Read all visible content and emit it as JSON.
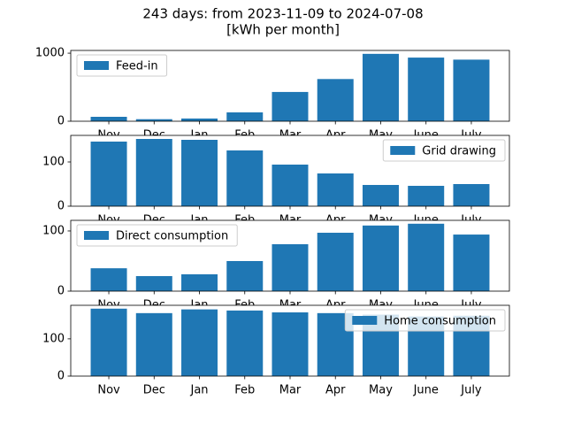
{
  "title": [
    "243 days: from 2023-11-09 to 2024-07-08",
    "[kWh per month]"
  ],
  "chart_data": [
    {
      "type": "bar",
      "categories": [
        "Nov",
        "Dec",
        "Jan",
        "Feb",
        "Mar",
        "Apr",
        "May",
        "June",
        "July"
      ],
      "series": [
        {
          "name": "Feed-in",
          "color": "#1f77b4",
          "values": [
            65,
            30,
            40,
            130,
            430,
            620,
            990,
            935,
            905
          ]
        }
      ],
      "ylim": [
        0,
        1040
      ],
      "yticks": [
        0,
        1000
      ],
      "legend": "upper-left"
    },
    {
      "type": "bar",
      "categories": [
        "Nov",
        "Dec",
        "Jan",
        "Feb",
        "Mar",
        "Apr",
        "May",
        "June",
        "July"
      ],
      "series": [
        {
          "name": "Grid drawing",
          "color": "#1f77b4",
          "values": [
            146,
            152,
            150,
            126,
            94,
            74,
            48,
            46,
            50
          ]
        }
      ],
      "ylim": [
        0,
        160
      ],
      "yticks": [
        0,
        100
      ],
      "legend": "upper-right"
    },
    {
      "type": "bar",
      "categories": [
        "Nov",
        "Dec",
        "Jan",
        "Feb",
        "Mar",
        "Apr",
        "May",
        "June",
        "July"
      ],
      "series": [
        {
          "name": "Direct consumption",
          "color": "#1f77b4",
          "values": [
            38,
            25,
            28,
            50,
            78,
            97,
            109,
            112,
            94
          ]
        }
      ],
      "ylim": [
        0,
        117.6
      ],
      "yticks": [
        0,
        100
      ],
      "legend": "upper-left"
    },
    {
      "type": "bar",
      "categories": [
        "Nov",
        "Dec",
        "Jan",
        "Feb",
        "Mar",
        "Apr",
        "May",
        "June",
        "July"
      ],
      "series": [
        {
          "name": "Home consumption",
          "color": "#1f77b4",
          "values": [
            181,
            169,
            179,
            176,
            171,
            169,
            165,
            160,
            162
          ]
        }
      ],
      "ylim": [
        0,
        190
      ],
      "yticks": [
        0,
        100
      ],
      "legend": "upper-right"
    }
  ]
}
